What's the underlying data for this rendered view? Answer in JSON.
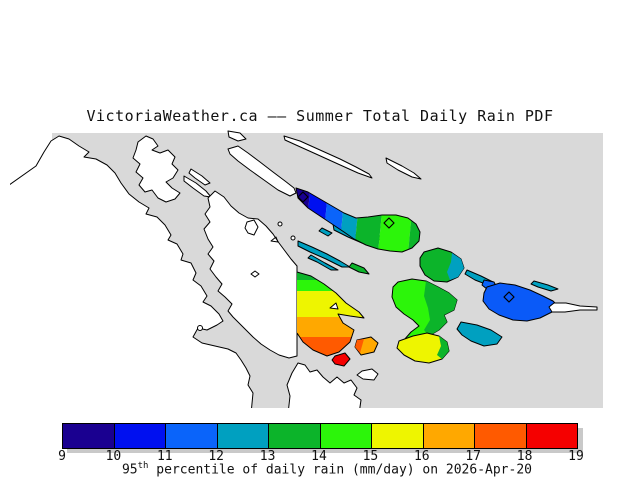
{
  "title": "VictoriaWeather.ca —— Summer Total Daily Rain PDF",
  "palette": {
    "water": "#d9d9d9",
    "land": "#ffffff",
    "navy": "#1a0090",
    "blue": "#0010f0",
    "azure": "#0a64fa",
    "saturna_blue": "#0a5af8",
    "teal": "#00a0c0",
    "green": "#0cb42a",
    "green_bright": "#2cf50a",
    "yellow": "#eef500",
    "orange": "#ffa800",
    "orange_red": "#ff5a00",
    "red": "#f50000",
    "shadow": "#c9c9c9"
  },
  "colorbar": {
    "min": 9,
    "max": 19,
    "ticks": [
      "9",
      "10",
      "11",
      "12",
      "13",
      "14",
      "15",
      "16",
      "17",
      "18",
      "19"
    ],
    "colors": [
      "#1a0090",
      "#0010f0",
      "#0a64fa",
      "#00a0c0",
      "#0cb42a",
      "#2cf50a",
      "#eef500",
      "#ffa800",
      "#ff5a00",
      "#f50000"
    ]
  },
  "caption": {
    "prefix": "95",
    "superscript": "th",
    "text": " percentile of daily rain (mm/day) on 2026-Apr-20"
  },
  "chart_data": {
    "type": "heatmap",
    "title": "VictoriaWeather.ca —— Summer Total Daily Rain PDF",
    "legend_label": "95th percentile of daily rain (mm/day) on 2026-Apr-20",
    "units": "mm/day",
    "scale_ticks": [
      9,
      10,
      11,
      12,
      13,
      14,
      15,
      16,
      17,
      18,
      19
    ],
    "scale_colors": [
      "#1a0090",
      "#0010f0",
      "#0a64fa",
      "#00a0c0",
      "#0cb42a",
      "#2cf50a",
      "#eef500",
      "#ffa800",
      "#ff5a00",
      "#f50000"
    ],
    "legend_position": "bottom",
    "notes": "Geographic map: gray = water, white = land outside data domain, colored islands = rain percentile values from ~9 (navy, NW Galiano) to ~19 (red, islet south of Salt Spring)"
  }
}
